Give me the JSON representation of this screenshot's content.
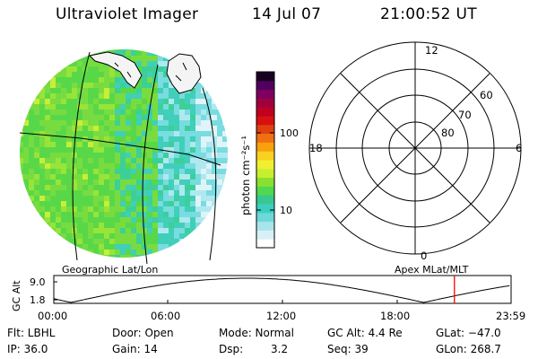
{
  "header": {
    "title": "Ultraviolet Imager",
    "date": "14 Jul 07",
    "time": "21:00:52 UT"
  },
  "colorbar": {
    "label": "photon cm⁻²s⁻¹",
    "ticks": [
      {
        "label": "100",
        "value": 100
      },
      {
        "label": "10",
        "value": 10
      }
    ],
    "colors": [
      "#ffffff",
      "#d8f0f4",
      "#a8e4ec",
      "#6ed8d8",
      "#3ccfc0",
      "#38c890",
      "#50d850",
      "#88e030",
      "#c8ee30",
      "#f0f030",
      "#f8d020",
      "#f8a010",
      "#f07010",
      "#e04010",
      "#d81010",
      "#c00020",
      "#a00040",
      "#800060",
      "#500060",
      "#1a0020"
    ]
  },
  "polar": {
    "top_label": "12",
    "left_label": "18",
    "right_label": "6",
    "bottom_label": "0",
    "ring_labels": [
      "60",
      "70",
      "80"
    ]
  },
  "projections": {
    "left": "Geographic Lat/Lon",
    "right": "Apex MLat/MLT"
  },
  "altitude_plot": {
    "ylabel": "GC Alt",
    "ytick_top": "9.0",
    "ytick_bottom": "1.8",
    "xticks": [
      "00:00",
      "06:00",
      "12:00",
      "18:00",
      "23:59"
    ],
    "marker_time_hours": 21.01,
    "marker_color": "#ff0000"
  },
  "status": {
    "filter": "Flt: LBHL",
    "ip": "IP: 36.0",
    "door": "Door: Open",
    "gain": "Gain: 14",
    "mode": "Mode: Normal",
    "dsp_label": "Dsp:",
    "dsp_value": "3.2",
    "gc_alt": "GC Alt: 4.4 Re",
    "seq": "Seq: 39",
    "glat": "GLat: −47.0",
    "glon": "GLon: 268.7"
  }
}
